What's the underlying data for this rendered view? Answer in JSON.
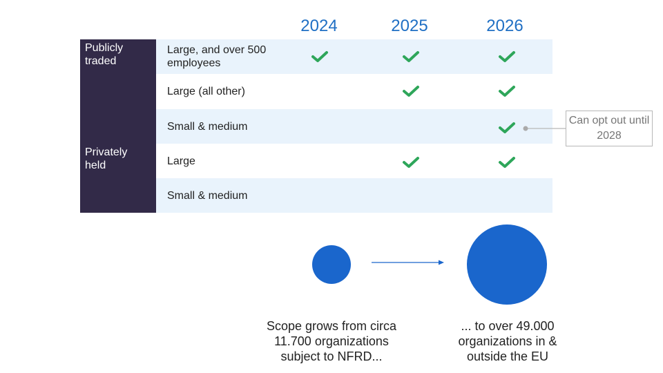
{
  "years": [
    "2024",
    "2025",
    "2026"
  ],
  "groups": [
    {
      "label": "Publicly traded"
    },
    {
      "label": "Privately held"
    }
  ],
  "rows": [
    {
      "label": "Large, and over 500 employees",
      "checks": [
        true,
        true,
        true
      ]
    },
    {
      "label": "Large (all other)",
      "checks": [
        false,
        true,
        true
      ]
    },
    {
      "label": "Small & medium",
      "checks": [
        false,
        false,
        true
      ]
    },
    {
      "label": "Large",
      "checks": [
        false,
        true,
        true
      ]
    },
    {
      "label": "Small & medium",
      "checks": [
        false,
        false,
        false
      ]
    }
  ],
  "callout": {
    "text": "Can opt out until 2028"
  },
  "scope": {
    "left_caption": "Scope grows from circa 11.700 organizations subject to NFRD...",
    "right_caption": "... to over 49.000 organizations in & outside the EU"
  },
  "colors": {
    "year_text": "#1f6fc4",
    "group_bg": "#322a48",
    "row_shade": "#e9f3fc",
    "check": "#2ea65a",
    "circle": "#1a66cc",
    "callout_border": "#b7b7b7"
  }
}
